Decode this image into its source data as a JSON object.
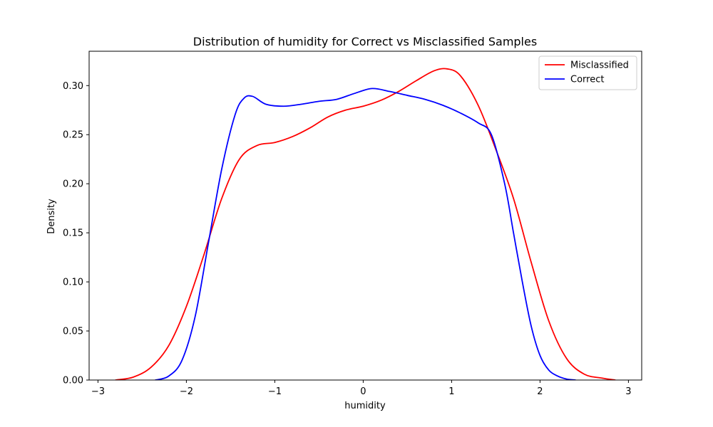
{
  "chart_data": {
    "type": "line",
    "title": "Distribution of humidity for Correct vs Misclassified Samples",
    "xlabel": "humidity",
    "ylabel": "Density",
    "xlim": [
      -3.1,
      3.15
    ],
    "ylim": [
      0,
      0.335
    ],
    "xticks": [
      -3,
      -2,
      -1,
      0,
      1,
      2,
      3
    ],
    "xtick_labels": [
      "−3",
      "−2",
      "−1",
      "0",
      "1",
      "2",
      "3"
    ],
    "yticks": [
      0,
      0.05,
      0.1,
      0.15,
      0.2,
      0.25,
      0.3
    ],
    "ytick_labels": [
      "0.00",
      "0.05",
      "0.10",
      "0.15",
      "0.20",
      "0.25",
      "0.30"
    ],
    "grid": false,
    "legend_position": "top-right",
    "series": [
      {
        "name": "Misclassified",
        "color": "#ff0000",
        "x": [
          -2.8,
          -2.6,
          -2.4,
          -2.2,
          -2.0,
          -1.8,
          -1.6,
          -1.4,
          -1.2,
          -1.0,
          -0.8,
          -0.6,
          -0.4,
          -0.2,
          0.0,
          0.2,
          0.4,
          0.6,
          0.8,
          0.95,
          1.1,
          1.3,
          1.5,
          1.7,
          1.9,
          2.1,
          2.3,
          2.5,
          2.7,
          2.85
        ],
        "y": [
          0.0,
          0.003,
          0.013,
          0.035,
          0.075,
          0.128,
          0.185,
          0.225,
          0.239,
          0.242,
          0.248,
          0.257,
          0.268,
          0.275,
          0.279,
          0.285,
          0.294,
          0.305,
          0.315,
          0.317,
          0.31,
          0.28,
          0.235,
          0.185,
          0.12,
          0.06,
          0.022,
          0.006,
          0.002,
          0.0
        ]
      },
      {
        "name": "Correct",
        "color": "#0000ff",
        "x": [
          -2.35,
          -2.2,
          -2.05,
          -1.9,
          -1.75,
          -1.6,
          -1.45,
          -1.35,
          -1.25,
          -1.1,
          -0.9,
          -0.7,
          -0.5,
          -0.3,
          -0.1,
          0.1,
          0.3,
          0.5,
          0.7,
          0.9,
          1.1,
          1.3,
          1.45,
          1.6,
          1.7,
          1.8,
          1.9,
          2.0,
          2.1,
          2.2,
          2.3,
          2.4
        ],
        "y": [
          0.0,
          0.004,
          0.02,
          0.065,
          0.14,
          0.215,
          0.27,
          0.287,
          0.289,
          0.281,
          0.279,
          0.281,
          0.284,
          0.286,
          0.292,
          0.297,
          0.294,
          0.29,
          0.286,
          0.28,
          0.272,
          0.262,
          0.25,
          0.2,
          0.15,
          0.1,
          0.055,
          0.025,
          0.01,
          0.004,
          0.001,
          0.0
        ]
      }
    ]
  }
}
